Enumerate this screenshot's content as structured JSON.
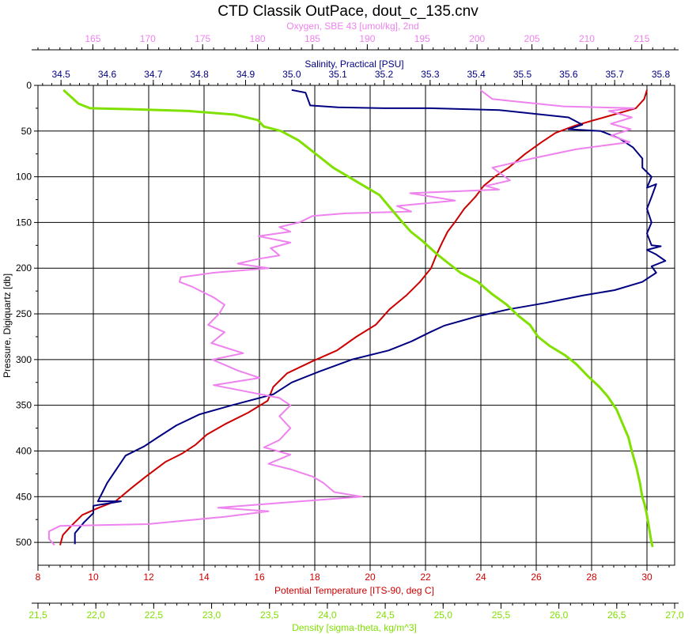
{
  "chart_data": {
    "type": "line",
    "title": "CTD Classik OutPace, dout_c_135.cnv",
    "y_axis": {
      "label": "Pressure, Digiquartz [db]",
      "range": [
        0,
        525
      ],
      "ticks": [
        "0",
        "50",
        "100",
        "150",
        "200",
        "250",
        "300",
        "350",
        "400",
        "450",
        "500"
      ],
      "inverted": true
    },
    "x_axes": [
      {
        "id": "oxygen",
        "label": "Oxygen, SBE 43 [umol/kg], 2nd",
        "position": "top-outer",
        "color": "#ee82ee",
        "range": [
          160,
          218
        ],
        "ticks": [
          "165",
          "170",
          "175",
          "180",
          "185",
          "190",
          "195",
          "200",
          "205",
          "210",
          "215"
        ]
      },
      {
        "id": "salinity",
        "label": "Salinity, Practical [PSU]",
        "position": "top-inner",
        "color": "#000080",
        "range": [
          34.45,
          35.83
        ],
        "ticks": [
          "34.5",
          "34.6",
          "34.7",
          "34.8",
          "34.9",
          "35.0",
          "35.1",
          "35.2",
          "35.3",
          "35.4",
          "35.5",
          "35.6",
          "35.7",
          "35.8"
        ]
      },
      {
        "id": "temperature",
        "label": "Potential Temperature [ITS-90, deg C]",
        "position": "bottom-inner",
        "color": "#cc0000",
        "range": [
          8,
          31
        ],
        "ticks": [
          "8",
          "10",
          "12",
          "14",
          "16",
          "18",
          "20",
          "22",
          "24",
          "26",
          "28",
          "30"
        ]
      },
      {
        "id": "density",
        "label": "Density [sigma-theta, kg/m^3]",
        "position": "bottom-outer",
        "color": "#80e000",
        "range": [
          21.5,
          27.0
        ],
        "ticks": [
          "21,5",
          "22,0",
          "22,5",
          "23,0",
          "23,5",
          "24,0",
          "24,5",
          "25,0",
          "25,5",
          "26,0",
          "26,5",
          "27,0"
        ]
      }
    ],
    "grid": true,
    "series": [
      {
        "axis": "temperature",
        "color": "#cc0000",
        "points": [
          [
            30.0,
            5
          ],
          [
            29.9,
            15
          ],
          [
            29.6,
            25
          ],
          [
            28.8,
            32
          ],
          [
            28.1,
            38
          ],
          [
            27.4,
            44
          ],
          [
            26.7,
            52
          ],
          [
            26.2,
            62
          ],
          [
            25.6,
            75
          ],
          [
            25.0,
            90
          ],
          [
            24.5,
            100
          ],
          [
            24.1,
            110
          ],
          [
            23.8,
            122
          ],
          [
            23.4,
            135
          ],
          [
            23.1,
            148
          ],
          [
            22.8,
            160
          ],
          [
            22.6,
            172
          ],
          [
            22.4,
            185
          ],
          [
            22.2,
            200
          ],
          [
            21.8,
            215
          ],
          [
            21.3,
            230
          ],
          [
            20.7,
            245
          ],
          [
            20.2,
            262
          ],
          [
            19.5,
            275
          ],
          [
            18.8,
            290
          ],
          [
            17.9,
            302
          ],
          [
            17.0,
            315
          ],
          [
            16.5,
            330
          ],
          [
            16.3,
            345
          ],
          [
            15.6,
            358
          ],
          [
            14.8,
            370
          ],
          [
            14.1,
            382
          ],
          [
            13.7,
            393
          ],
          [
            13.2,
            403
          ],
          [
            12.6,
            412
          ],
          [
            11.9,
            428
          ],
          [
            11.4,
            440
          ],
          [
            10.8,
            455
          ],
          [
            10.2,
            462
          ],
          [
            9.6,
            470
          ],
          [
            9.2,
            482
          ],
          [
            8.9,
            492
          ],
          [
            8.8,
            503
          ]
        ]
      },
      {
        "axis": "salinity",
        "color": "#000080",
        "points": [
          [
            35.0,
            5
          ],
          [
            35.03,
            8
          ],
          [
            35.04,
            22
          ],
          [
            35.1,
            24
          ],
          [
            35.2,
            25
          ],
          [
            35.3,
            25
          ],
          [
            35.45,
            27
          ],
          [
            35.6,
            35
          ],
          [
            35.63,
            43
          ],
          [
            35.6,
            48
          ],
          [
            35.67,
            50
          ],
          [
            35.71,
            58
          ],
          [
            35.74,
            68
          ],
          [
            35.76,
            80
          ],
          [
            35.76,
            90
          ],
          [
            35.78,
            100
          ],
          [
            35.77,
            112
          ],
          [
            35.79,
            108
          ],
          [
            35.78,
            122
          ],
          [
            35.77,
            135
          ],
          [
            35.78,
            150
          ],
          [
            35.77,
            162
          ],
          [
            35.78,
            175
          ],
          [
            35.8,
            176
          ],
          [
            35.77,
            180
          ],
          [
            35.79,
            185
          ],
          [
            35.81,
            192
          ],
          [
            35.78,
            198
          ],
          [
            35.79,
            205
          ],
          [
            35.76,
            215
          ],
          [
            35.7,
            224
          ],
          [
            35.63,
            230
          ],
          [
            35.55,
            238
          ],
          [
            35.47,
            245
          ],
          [
            35.4,
            253
          ],
          [
            35.33,
            263
          ],
          [
            35.3,
            270
          ],
          [
            35.26,
            280
          ],
          [
            35.21,
            290
          ],
          [
            35.13,
            300
          ],
          [
            35.06,
            313
          ],
          [
            35.0,
            325
          ],
          [
            34.96,
            338
          ],
          [
            34.87,
            350
          ],
          [
            34.8,
            360
          ],
          [
            34.75,
            372
          ],
          [
            34.71,
            385
          ],
          [
            34.68,
            395
          ],
          [
            34.64,
            405
          ],
          [
            34.62,
            420
          ],
          [
            34.6,
            435
          ],
          [
            34.59,
            445
          ],
          [
            34.58,
            455
          ],
          [
            34.63,
            455
          ],
          [
            34.57,
            460
          ],
          [
            34.57,
            468
          ],
          [
            34.55,
            478
          ],
          [
            34.53,
            490
          ],
          [
            34.53,
            502
          ]
        ]
      },
      {
        "axis": "oxygen",
        "color": "#ee82ee",
        "points": [
          [
            200.3,
            5
          ],
          [
            201.4,
            15
          ],
          [
            207.9,
            23
          ],
          [
            214.3,
            25
          ],
          [
            212.0,
            28
          ],
          [
            214.1,
            35
          ],
          [
            212.2,
            42
          ],
          [
            214.0,
            48
          ],
          [
            212.2,
            55
          ],
          [
            213.9,
            62
          ],
          [
            209.0,
            70
          ],
          [
            205.0,
            80
          ],
          [
            201.4,
            90
          ],
          [
            203.0,
            104
          ],
          [
            200.8,
            110
          ],
          [
            202.0,
            114
          ],
          [
            193.9,
            118
          ],
          [
            198.0,
            126
          ],
          [
            192.7,
            132
          ],
          [
            194.0,
            138
          ],
          [
            188.0,
            140
          ],
          [
            185.0,
            143
          ],
          [
            183.8,
            150
          ],
          [
            182.0,
            155
          ],
          [
            183.0,
            160
          ],
          [
            180.1,
            165
          ],
          [
            183.0,
            172
          ],
          [
            181.2,
            178
          ],
          [
            182.0,
            186
          ],
          [
            180.0,
            190
          ],
          [
            178.2,
            195
          ],
          [
            181.0,
            200
          ],
          [
            176.0,
            205
          ],
          [
            173.0,
            210
          ],
          [
            172.9,
            215
          ],
          [
            174.0,
            220
          ],
          [
            176.0,
            232
          ],
          [
            177.0,
            240
          ],
          [
            176.5,
            250
          ],
          [
            175.5,
            262
          ],
          [
            177.0,
            270
          ],
          [
            175.8,
            282
          ],
          [
            178.7,
            293
          ],
          [
            175.9,
            300
          ],
          [
            178.2,
            312
          ],
          [
            180.2,
            320
          ],
          [
            176.0,
            328
          ],
          [
            179.0,
            335
          ],
          [
            182.0,
            342
          ],
          [
            183.0,
            350
          ],
          [
            182.0,
            362
          ],
          [
            183.0,
            375
          ],
          [
            182.0,
            388
          ],
          [
            180.6,
            396
          ],
          [
            183.0,
            404
          ],
          [
            181.0,
            414
          ],
          [
            183.0,
            420
          ],
          [
            185.0,
            428
          ],
          [
            186.0,
            435
          ],
          [
            187.0,
            445
          ],
          [
            189.5,
            450
          ],
          [
            184.0,
            455
          ],
          [
            176.4,
            462
          ],
          [
            181.0,
            466
          ],
          [
            177.0,
            472
          ],
          [
            170.0,
            480
          ],
          [
            162.0,
            482
          ],
          [
            161.0,
            488
          ],
          [
            161.0,
            496
          ],
          [
            161.5,
            503
          ]
        ]
      },
      {
        "axis": "density",
        "color": "#80e000",
        "points": [
          [
            21.72,
            5
          ],
          [
            21.85,
            20
          ],
          [
            21.95,
            25
          ],
          [
            22.3,
            26
          ],
          [
            22.8,
            28
          ],
          [
            23.2,
            32
          ],
          [
            23.4,
            38
          ],
          [
            23.45,
            45
          ],
          [
            23.6,
            50
          ],
          [
            23.75,
            60
          ],
          [
            23.9,
            75
          ],
          [
            24.05,
            90
          ],
          [
            24.25,
            105
          ],
          [
            24.45,
            120
          ],
          [
            24.55,
            135
          ],
          [
            24.65,
            150
          ],
          [
            24.72,
            160
          ],
          [
            24.82,
            170
          ],
          [
            24.95,
            185
          ],
          [
            25.05,
            195
          ],
          [
            25.15,
            205
          ],
          [
            25.3,
            215
          ],
          [
            25.42,
            228
          ],
          [
            25.55,
            240
          ],
          [
            25.65,
            252
          ],
          [
            25.75,
            262
          ],
          [
            25.82,
            275
          ],
          [
            25.92,
            285
          ],
          [
            26.05,
            295
          ],
          [
            26.15,
            305
          ],
          [
            26.25,
            318
          ],
          [
            26.35,
            330
          ],
          [
            26.42,
            340
          ],
          [
            26.5,
            355
          ],
          [
            26.55,
            370
          ],
          [
            26.6,
            385
          ],
          [
            26.63,
            400
          ],
          [
            26.67,
            418
          ],
          [
            26.7,
            435
          ],
          [
            26.72,
            450
          ],
          [
            26.74,
            458
          ],
          [
            26.76,
            470
          ],
          [
            26.78,
            485
          ],
          [
            26.8,
            500
          ],
          [
            26.81,
            505
          ]
        ]
      }
    ]
  }
}
